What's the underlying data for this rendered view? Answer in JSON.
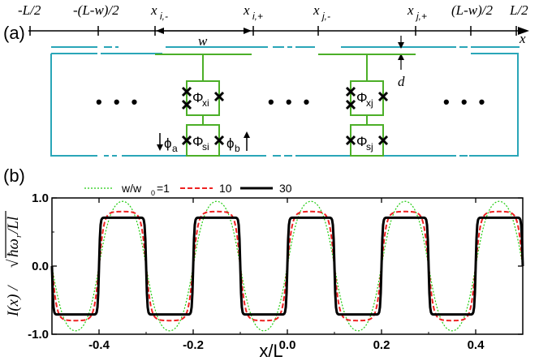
{
  "panel_a": {
    "label": "(a)",
    "axis_label": "x",
    "top_labels": [
      "-L/2",
      "-(L-w)/2",
      "x",
      "x",
      "x",
      "x",
      "(L-w)/2",
      "L/2"
    ],
    "top_label_subs": [
      "",
      "",
      "i,-",
      "i,+",
      "j,-",
      "j,+",
      "",
      ""
    ],
    "width_label": "w",
    "gap_label": "d",
    "junction_labels": [
      {
        "main": "Φ",
        "sub": "xi"
      },
      {
        "main": "Φ",
        "sub": "si"
      },
      {
        "main": "Φ",
        "sub": "xj"
      },
      {
        "main": "Φ",
        "sub": "sj"
      }
    ],
    "phi_a": {
      "main": "ϕ",
      "sub": "a"
    },
    "phi_b": {
      "main": "ϕ",
      "sub": "b"
    },
    "ellipsis": "• • •",
    "colors": {
      "loop": "#2aa6b8",
      "squid": "#4caf28",
      "junction": "#000000"
    }
  },
  "panel_b": {
    "label": "(b)",
    "legend": {
      "prefix": "w/w",
      "prefix_sub": "0",
      "entries": [
        "=1",
        "10",
        "30"
      ]
    },
    "ylabel_left": "I(x) /",
    "ylabel_right": "ħω",
    "ylabel_right_sub": "r",
    "ylabel_tail": "/Ll",
    "xlabel": "x/L"
  },
  "chart_data": {
    "type": "line",
    "xlabel": "x/L",
    "ylabel": "I(x) / √(ħω_r/Ll)",
    "xlim": [
      -0.5,
      0.5
    ],
    "ylim": [
      -1.0,
      1.0
    ],
    "xticks": [
      -0.4,
      -0.2,
      0.0,
      0.2,
      0.4
    ],
    "xtick_labels": [
      "-0.4",
      "-0.2",
      "0.0",
      "0.2",
      "0.4"
    ],
    "yticks": [
      -1.0,
      0.0,
      1.0
    ],
    "ytick_labels": [
      "-1.0",
      "0.0",
      "1.0"
    ],
    "period": 0.2,
    "series": [
      {
        "name": "w/w0=1",
        "color": "#22cc11",
        "style": "dotted",
        "amplitude": 0.95,
        "sharpness": 1.0
      },
      {
        "name": "10",
        "color": "#ee2222",
        "style": "dashed",
        "amplitude": 0.8,
        "sharpness": 3.0
      },
      {
        "name": "30",
        "color": "#000000",
        "style": "solid",
        "amplitude": 0.71,
        "sharpness": 12.0
      }
    ],
    "legend_position": "top-left"
  }
}
